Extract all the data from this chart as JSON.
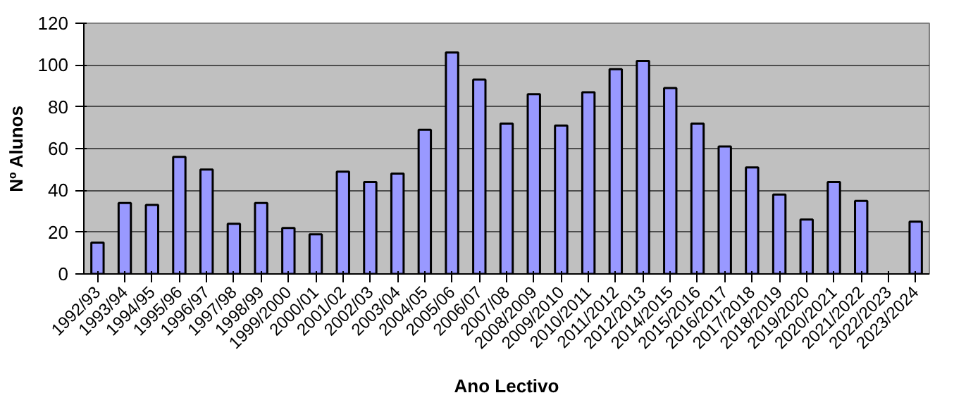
{
  "chart_data": {
    "type": "bar",
    "xlabel": "Ano Lectivo",
    "ylabel": "Nº Alunos",
    "categories": [
      "1992/93",
      "1993/94",
      "1994/95",
      "1995/96",
      "1996/97",
      "1997/98",
      "1998/99",
      "1999/2000",
      "2000/01",
      "2001/02",
      "2002/03",
      "2003/04",
      "2004/05",
      "2005/06",
      "2006/07",
      "2007/08",
      "2008/2009",
      "2009/2010",
      "2010/2011",
      "2011/2012",
      "2012/2013",
      "2014/2015",
      "2015/2016",
      "2016/2017",
      "2017/2018",
      "2018/2019",
      "2019/2020",
      "2020/2021",
      "2021/2022",
      "2022/2023",
      "2023/2024"
    ],
    "values": [
      15,
      34,
      33,
      56,
      50,
      24,
      34,
      22,
      19,
      49,
      44,
      48,
      69,
      106,
      93,
      72,
      86,
      71,
      87,
      98,
      102,
      89,
      72,
      61,
      51,
      38,
      26,
      44,
      35,
      null,
      25
    ],
    "color": "#9999ff",
    "ylim": [
      0,
      120
    ],
    "yticks": [
      0,
      20,
      40,
      60,
      80,
      100,
      120
    ],
    "grid": "y"
  }
}
